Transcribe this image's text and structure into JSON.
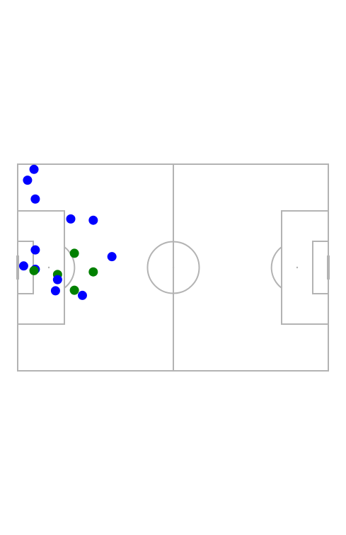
{
  "pitch": {
    "line_color": "#b3b3b3",
    "background": "#ffffff",
    "length": 120,
    "width": 80
  },
  "teams": {
    "blue": {
      "color": "#0000ff"
    },
    "green": {
      "color": "#008000"
    }
  },
  "players": [
    {
      "team": "blue",
      "x": 6.3,
      "y": 2.0
    },
    {
      "team": "blue",
      "x": 3.8,
      "y": 6.2
    },
    {
      "team": "blue",
      "x": 6.8,
      "y": 13.5
    },
    {
      "team": "blue",
      "x": 20.5,
      "y": 21.2
    },
    {
      "team": "blue",
      "x": 29.2,
      "y": 21.7
    },
    {
      "team": "blue",
      "x": 6.8,
      "y": 33.2
    },
    {
      "team": "green",
      "x": 21.9,
      "y": 34.5
    },
    {
      "team": "blue",
      "x": 36.4,
      "y": 35.8
    },
    {
      "team": "blue",
      "x": 2.3,
      "y": 39.4
    },
    {
      "team": "blue",
      "x": 6.8,
      "y": 40.7
    },
    {
      "team": "green",
      "x": 6.3,
      "y": 41.2
    },
    {
      "team": "green",
      "x": 15.4,
      "y": 42.7
    },
    {
      "team": "green",
      "x": 29.2,
      "y": 41.7
    },
    {
      "team": "blue",
      "x": 15.4,
      "y": 44.7
    },
    {
      "team": "blue",
      "x": 14.6,
      "y": 49.0
    },
    {
      "team": "green",
      "x": 21.9,
      "y": 48.8
    },
    {
      "team": "blue",
      "x": 25.0,
      "y": 50.8
    }
  ]
}
